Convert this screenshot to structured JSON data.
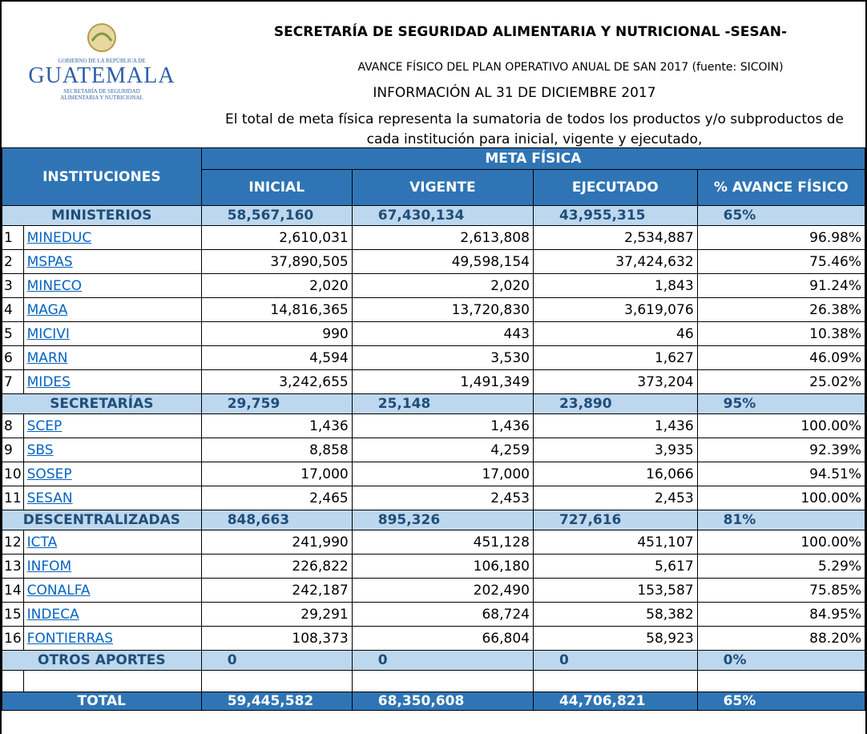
{
  "header": {
    "logo": {
      "line1": "GOBIERNO DE LA REPÚBLICA DE",
      "name": "GUATEMALA",
      "line2": "SECRETARÍA DE SEGURIDAD",
      "line3": "ALIMENTARIA Y NUTRICIONAL"
    },
    "title": "SECRETARÍA DE  SEGURIDAD ALIMENTARIA Y NUTRICIONAL -SESAN-",
    "subtitle": "AVANCE FÍSICO DEL PLAN OPERATIVO ANUAL DE SAN 2017 (fuente: SICOIN)",
    "info": "INFORMACIÓN AL 31 DE DICIEMBRE 2017",
    "note": "El total de meta física  representa la sumatoria de todos los productos y/o subproductos de cada institución  para inicial, vigente y ejecutado,"
  },
  "table": {
    "institutions_header": "INSTITUCIONES",
    "group_header": "META FÍSICA",
    "columns": [
      "INICIAL",
      "VIGENTE",
      "EJECUTADO",
      "% AVANCE FÍSICO"
    ],
    "groups": [
      {
        "name": "MINISTERIOS",
        "totals": [
          "58,567,160",
          "67,430,134",
          "43,955,315",
          "65%"
        ],
        "rows": [
          [
            "1",
            "MINEDUC",
            "2,610,031",
            "2,613,808",
            "2,534,887",
            "96.98%"
          ],
          [
            "2",
            "MSPAS",
            "37,890,505",
            "49,598,154",
            "37,424,632",
            "75.46%"
          ],
          [
            "3",
            "MINECO",
            "2,020",
            "2,020",
            "1,843",
            "91.24%"
          ],
          [
            "4",
            "MAGA",
            "14,816,365",
            "13,720,830",
            "3,619,076",
            "26.38%"
          ],
          [
            "5",
            "MICIVI",
            "990",
            "443",
            "46",
            "10.38%"
          ],
          [
            "6",
            "MARN",
            "4,594",
            "3,530",
            "1,627",
            "46.09%"
          ],
          [
            "7",
            "MIDES",
            "3,242,655",
            "1,491,349",
            "373,204",
            "25.02%"
          ]
        ]
      },
      {
        "name": "SECRETARÍAS",
        "totals": [
          "29,759",
          "25,148",
          "23,890",
          "95%"
        ],
        "rows": [
          [
            "8",
            "SCEP",
            "1,436",
            "1,436",
            "1,436",
            "100.00%"
          ],
          [
            "9",
            "SBS",
            "8,858",
            "4,259",
            "3,935",
            "92.39%"
          ],
          [
            "10",
            "SOSEP",
            "17,000",
            "17,000",
            "16,066",
            "94.51%"
          ],
          [
            "11",
            "SESAN",
            "2,465",
            "2,453",
            "2,453",
            "100.00%"
          ]
        ]
      },
      {
        "name": "DESCENTRALIZADAS",
        "totals": [
          "848,663",
          "895,326",
          "727,616",
          "81%"
        ],
        "rows": [
          [
            "12",
            "ICTA",
            "241,990",
            "451,128",
            "451,107",
            "100.00%"
          ],
          [
            "13",
            "INFOM",
            "226,822",
            "106,180",
            "5,617",
            "5.29%"
          ],
          [
            "14",
            "CONALFA",
            "242,187",
            "202,490",
            "153,587",
            "75.85%"
          ],
          [
            "15",
            "INDECA",
            "29,291",
            "68,724",
            "58,382",
            "84.95%"
          ],
          [
            "16",
            "FONTIERRAS",
            "108,373",
            "66,804",
            "58,923",
            "88.20%"
          ]
        ]
      },
      {
        "name": "OTROS APORTES",
        "totals": [
          "0",
          "0",
          "0",
          "0%"
        ],
        "rows": []
      }
    ],
    "total": {
      "name": "TOTAL",
      "totals": [
        "59,445,582",
        "68,350,608",
        "44,706,821",
        "65%"
      ]
    }
  }
}
